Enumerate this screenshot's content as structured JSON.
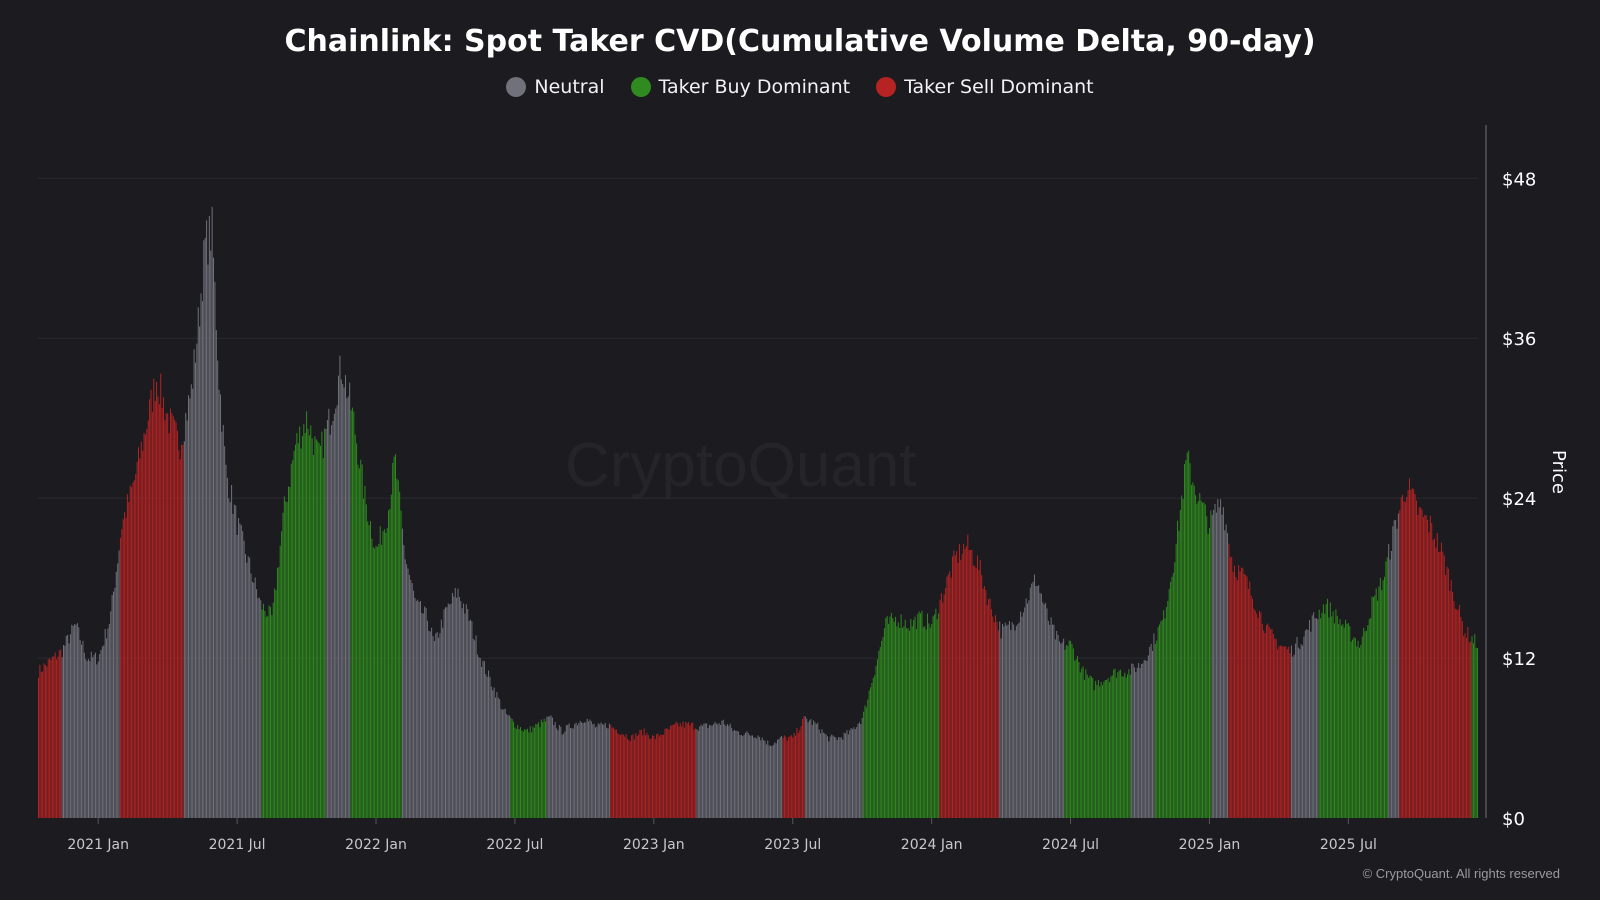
{
  "chart_data": {
    "type": "bar",
    "title": "Chainlink: Spot Taker CVD(Cumulative Volume Delta, 90-day)",
    "ylabel": "Price",
    "ylim": [
      0,
      52
    ],
    "y_ticks": [
      "$0",
      "$12",
      "$24",
      "$36",
      "$48"
    ],
    "y_tick_values": [
      0,
      12,
      24,
      36,
      48
    ],
    "x_ticks": [
      "2021 Jan",
      "2021 Jul",
      "2022 Jan",
      "2022 Jul",
      "2023 Jan",
      "2023 Jul",
      "2024 Jan",
      "2024 Jul",
      "2025 Jan",
      "2025 Jul"
    ],
    "x_tick_months": [
      0,
      6,
      12,
      18,
      24,
      30,
      36,
      42,
      48,
      54
    ],
    "x_range_months": [
      -2.6,
      59.6
    ],
    "legend": [
      {
        "label": "Neutral",
        "color": "#71717b"
      },
      {
        "label": "Taker Buy Dominant",
        "color": "#2f8a1f"
      },
      {
        "label": "Taker Sell Dominant",
        "color": "#b52323"
      }
    ],
    "price_points": [
      [
        -2.6,
        11
      ],
      [
        -1.6,
        12.5
      ],
      [
        -1.0,
        14.5
      ],
      [
        -0.5,
        12
      ],
      [
        0,
        12
      ],
      [
        0.5,
        15
      ],
      [
        1.0,
        22
      ],
      [
        1.5,
        25
      ],
      [
        2.0,
        29
      ],
      [
        2.5,
        33
      ],
      [
        3.0,
        30
      ],
      [
        3.5,
        28
      ],
      [
        4.0,
        32
      ],
      [
        4.3,
        37
      ],
      [
        4.6,
        43
      ],
      [
        4.9,
        44
      ],
      [
        5.2,
        33
      ],
      [
        5.5,
        26
      ],
      [
        6.0,
        22
      ],
      [
        6.5,
        19
      ],
      [
        7.0,
        16
      ],
      [
        7.5,
        15
      ],
      [
        8.0,
        23
      ],
      [
        8.5,
        28
      ],
      [
        9.0,
        30
      ],
      [
        9.5,
        27
      ],
      [
        10.0,
        30
      ],
      [
        10.5,
        34
      ],
      [
        11.0,
        30
      ],
      [
        11.5,
        24
      ],
      [
        12.0,
        20
      ],
      [
        12.5,
        23
      ],
      [
        12.8,
        27
      ],
      [
        13.2,
        20
      ],
      [
        13.7,
        16
      ],
      [
        14.2,
        15
      ],
      [
        14.5,
        13
      ],
      [
        15.0,
        15.5
      ],
      [
        15.5,
        17
      ],
      [
        16.0,
        15
      ],
      [
        16.5,
        12
      ],
      [
        17.0,
        10
      ],
      [
        17.5,
        8
      ],
      [
        18.0,
        7
      ],
      [
        18.5,
        6.5
      ],
      [
        19.0,
        7
      ],
      [
        19.5,
        7.5
      ],
      [
        20.0,
        6.5
      ],
      [
        20.5,
        7
      ],
      [
        21.0,
        7.5
      ],
      [
        21.5,
        6.8
      ],
      [
        22.0,
        7
      ],
      [
        22.5,
        6.5
      ],
      [
        23.0,
        6
      ],
      [
        23.5,
        6.5
      ],
      [
        24.0,
        6
      ],
      [
        24.5,
        6.5
      ],
      [
        25.0,
        7
      ],
      [
        25.5,
        7
      ],
      [
        26.0,
        6.8
      ],
      [
        26.5,
        7
      ],
      [
        27.0,
        7.2
      ],
      [
        27.5,
        6.5
      ],
      [
        28.0,
        6.3
      ],
      [
        28.5,
        6.2
      ],
      [
        29.0,
        5.5
      ],
      [
        29.5,
        6
      ],
      [
        30.0,
        6
      ],
      [
        30.5,
        7.5
      ],
      [
        31.0,
        7
      ],
      [
        31.5,
        6
      ],
      [
        32.0,
        6
      ],
      [
        32.5,
        6.5
      ],
      [
        33.0,
        7.5
      ],
      [
        33.5,
        11
      ],
      [
        34.0,
        14.5
      ],
      [
        34.5,
        15
      ],
      [
        35.0,
        14.5
      ],
      [
        35.5,
        15
      ],
      [
        36.0,
        14.5
      ],
      [
        36.5,
        17
      ],
      [
        37.0,
        19.5
      ],
      [
        37.5,
        20.5
      ],
      [
        38.0,
        19
      ],
      [
        38.5,
        16
      ],
      [
        39.0,
        14
      ],
      [
        39.5,
        14.5
      ],
      [
        40.0,
        16
      ],
      [
        40.5,
        18
      ],
      [
        41.0,
        15
      ],
      [
        41.5,
        13
      ],
      [
        42.0,
        13
      ],
      [
        42.5,
        11
      ],
      [
        43.0,
        10
      ],
      [
        43.5,
        10.5
      ],
      [
        44.0,
        11
      ],
      [
        44.5,
        11
      ],
      [
        45.0,
        11.5
      ],
      [
        45.5,
        13
      ],
      [
        46.0,
        15
      ],
      [
        46.5,
        20
      ],
      [
        47.0,
        27
      ],
      [
        47.5,
        24
      ],
      [
        48.0,
        22
      ],
      [
        48.5,
        24
      ],
      [
        49.0,
        19
      ],
      [
        49.5,
        18
      ],
      [
        50.0,
        16
      ],
      [
        50.5,
        14
      ],
      [
        51.0,
        13
      ],
      [
        51.5,
        12.5
      ],
      [
        52.0,
        13.5
      ],
      [
        52.5,
        15
      ],
      [
        53.0,
        16
      ],
      [
        53.5,
        15
      ],
      [
        54.0,
        14
      ],
      [
        54.5,
        13
      ],
      [
        55.0,
        16
      ],
      [
        55.5,
        18
      ],
      [
        56.0,
        22
      ],
      [
        56.5,
        25
      ],
      [
        57.0,
        23
      ],
      [
        57.5,
        22
      ],
      [
        58.0,
        20
      ],
      [
        58.5,
        17
      ],
      [
        59.0,
        14
      ],
      [
        59.6,
        13
      ]
    ],
    "segments": [
      {
        "start": -2.6,
        "end": -1.6,
        "state": "Taker Sell Dominant"
      },
      {
        "start": -1.6,
        "end": 0.9,
        "state": "Neutral"
      },
      {
        "start": 0.9,
        "end": 3.7,
        "state": "Taker Sell Dominant"
      },
      {
        "start": 3.7,
        "end": 7.0,
        "state": "Neutral"
      },
      {
        "start": 7.0,
        "end": 9.8,
        "state": "Taker Buy Dominant"
      },
      {
        "start": 9.8,
        "end": 10.9,
        "state": "Neutral"
      },
      {
        "start": 10.9,
        "end": 13.1,
        "state": "Taker Buy Dominant"
      },
      {
        "start": 13.1,
        "end": 17.8,
        "state": "Neutral"
      },
      {
        "start": 17.8,
        "end": 19.3,
        "state": "Taker Buy Dominant"
      },
      {
        "start": 19.3,
        "end": 22.1,
        "state": "Neutral"
      },
      {
        "start": 22.1,
        "end": 25.8,
        "state": "Taker Sell Dominant"
      },
      {
        "start": 25.8,
        "end": 29.5,
        "state": "Neutral"
      },
      {
        "start": 29.5,
        "end": 30.5,
        "state": "Taker Sell Dominant"
      },
      {
        "start": 30.5,
        "end": 33.0,
        "state": "Neutral"
      },
      {
        "start": 33.0,
        "end": 36.3,
        "state": "Taker Buy Dominant"
      },
      {
        "start": 36.3,
        "end": 38.9,
        "state": "Taker Sell Dominant"
      },
      {
        "start": 38.9,
        "end": 41.7,
        "state": "Neutral"
      },
      {
        "start": 41.7,
        "end": 44.6,
        "state": "Taker Buy Dominant"
      },
      {
        "start": 44.6,
        "end": 45.6,
        "state": "Neutral"
      },
      {
        "start": 45.6,
        "end": 48.1,
        "state": "Taker Buy Dominant"
      },
      {
        "start": 48.1,
        "end": 48.8,
        "state": "Neutral"
      },
      {
        "start": 48.8,
        "end": 51.5,
        "state": "Taker Sell Dominant"
      },
      {
        "start": 51.5,
        "end": 52.7,
        "state": "Neutral"
      },
      {
        "start": 52.7,
        "end": 55.7,
        "state": "Taker Buy Dominant"
      },
      {
        "start": 55.7,
        "end": 56.2,
        "state": "Neutral"
      },
      {
        "start": 56.2,
        "end": 59.3,
        "state": "Taker Sell Dominant"
      },
      {
        "start": 59.3,
        "end": 59.6,
        "state": "Taker Buy Dominant"
      }
    ]
  },
  "watermark": "CryptoQuant",
  "footer": "© CryptoQuant. All rights reserved"
}
